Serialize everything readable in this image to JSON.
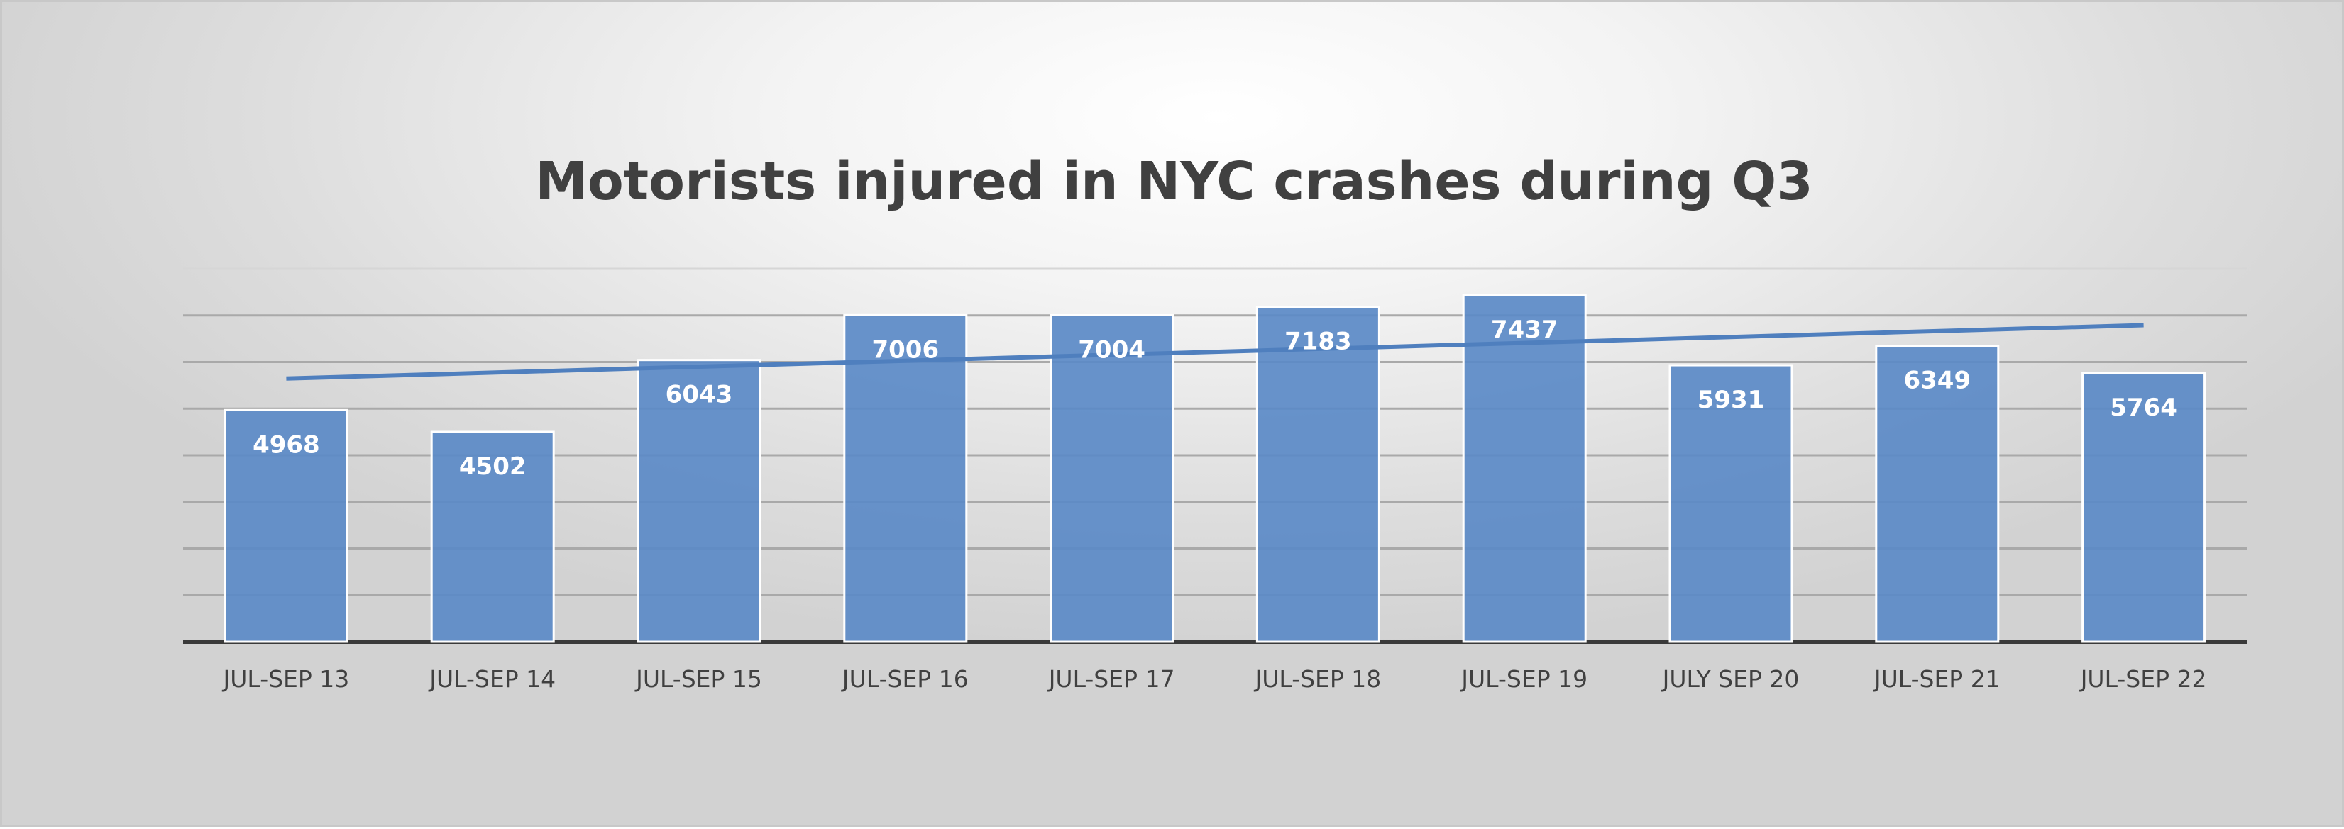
{
  "chart_data": {
    "type": "bar",
    "title": "Motorists injured in NYC crashes during Q3",
    "xlabel": "",
    "ylabel": "",
    "categories": [
      "JUL-SEP 13",
      "JUL-SEP 14",
      "JUL-SEP 15",
      "JUL-SEP 16",
      "JUL-SEP 17",
      "JUL-SEP 18",
      "JUL-SEP 19",
      "JULY SEP 20",
      "JUL-SEP 21",
      "JUL-SEP 22"
    ],
    "values": [
      4968,
      4502,
      6043,
      7006,
      7004,
      7183,
      7437,
      5931,
      6349,
      5764
    ],
    "ylim": [
      0,
      8000
    ],
    "grid": true,
    "trendline": "linear",
    "data_labels": true,
    "colors": {
      "bar": "#5b8ac7",
      "trendline": "#4f7fbe"
    }
  }
}
